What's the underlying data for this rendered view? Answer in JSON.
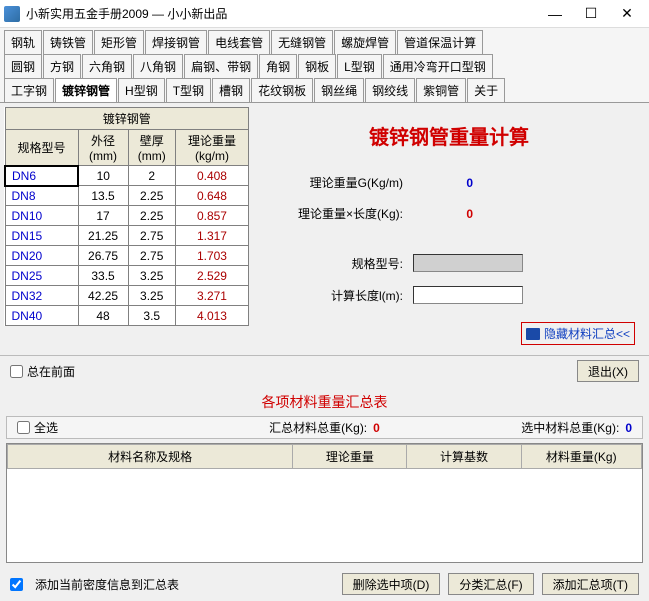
{
  "window": {
    "title": "小新实用五金手册2009 — 小小新出品"
  },
  "tabs_row1": [
    "钢轨",
    "铸铁管",
    "矩形管",
    "焊接钢管",
    "电线套管",
    "无缝钢管",
    "螺旋焊管",
    "管道保温计算"
  ],
  "tabs_row2": [
    "圆钢",
    "方钢",
    "六角钢",
    "八角钢",
    "扁钢、带钢",
    "角钢",
    "钢板",
    "L型钢",
    "通用冷弯开口型钢"
  ],
  "tabs_row3": [
    "工字钢",
    "镀锌钢管",
    "H型钢",
    "T型钢",
    "槽钢",
    "花纹钢板",
    "钢丝绳",
    "钢绞线",
    "紫铜管",
    "关于"
  ],
  "active_tab": "镀锌钢管",
  "table": {
    "title": "镀锌钢管",
    "cols": [
      "规格型号",
      "外径\n(mm)",
      "壁厚\n(mm)",
      "理论重量\n(kg/m)"
    ],
    "rows": [
      {
        "spec": "DN6",
        "od": "10",
        "wt": "2",
        "tw": "0.408",
        "sel": true
      },
      {
        "spec": "DN8",
        "od": "13.5",
        "wt": "2.25",
        "tw": "0.648"
      },
      {
        "spec": "DN10",
        "od": "17",
        "wt": "2.25",
        "tw": "0.857"
      },
      {
        "spec": "DN15",
        "od": "21.25",
        "wt": "2.75",
        "tw": "1.317"
      },
      {
        "spec": "DN20",
        "od": "26.75",
        "wt": "2.75",
        "tw": "1.703"
      },
      {
        "spec": "DN25",
        "od": "33.5",
        "wt": "3.25",
        "tw": "2.529"
      },
      {
        "spec": "DN32",
        "od": "42.25",
        "wt": "3.25",
        "tw": "3.271"
      },
      {
        "spec": "DN40",
        "od": "48",
        "wt": "3.5",
        "tw": "4.013"
      }
    ]
  },
  "right": {
    "title": "镀锌钢管重量计算",
    "g_label": "理论重量G(Kg/m)",
    "g_val": "0",
    "l_label": "理论重量×长度(Kg):",
    "l_val": "0",
    "spec_label": "规格型号:",
    "spec_val": "",
    "len_label": "计算长度l(m):",
    "len_val": "",
    "hide_link": "隐藏材料汇总<<"
  },
  "mid": {
    "always_top": "总在前面",
    "exit": "退出(X)"
  },
  "summary": {
    "title": "各项材料重量汇总表",
    "select_all": "全选",
    "total_label": "汇总材料总重(Kg):",
    "total_val": "0",
    "sel_label": "选中材料总重(Kg):",
    "sel_val": "0",
    "cols": [
      "材料名称及规格",
      "理论重量",
      "计算基数",
      "材料重量(Kg)"
    ]
  },
  "footer": {
    "density_cb": "添加当前密度信息到汇总表",
    "b1": "删除选中项(D)",
    "b2": "分类汇总(F)",
    "b3": "添加汇总项(T)"
  }
}
